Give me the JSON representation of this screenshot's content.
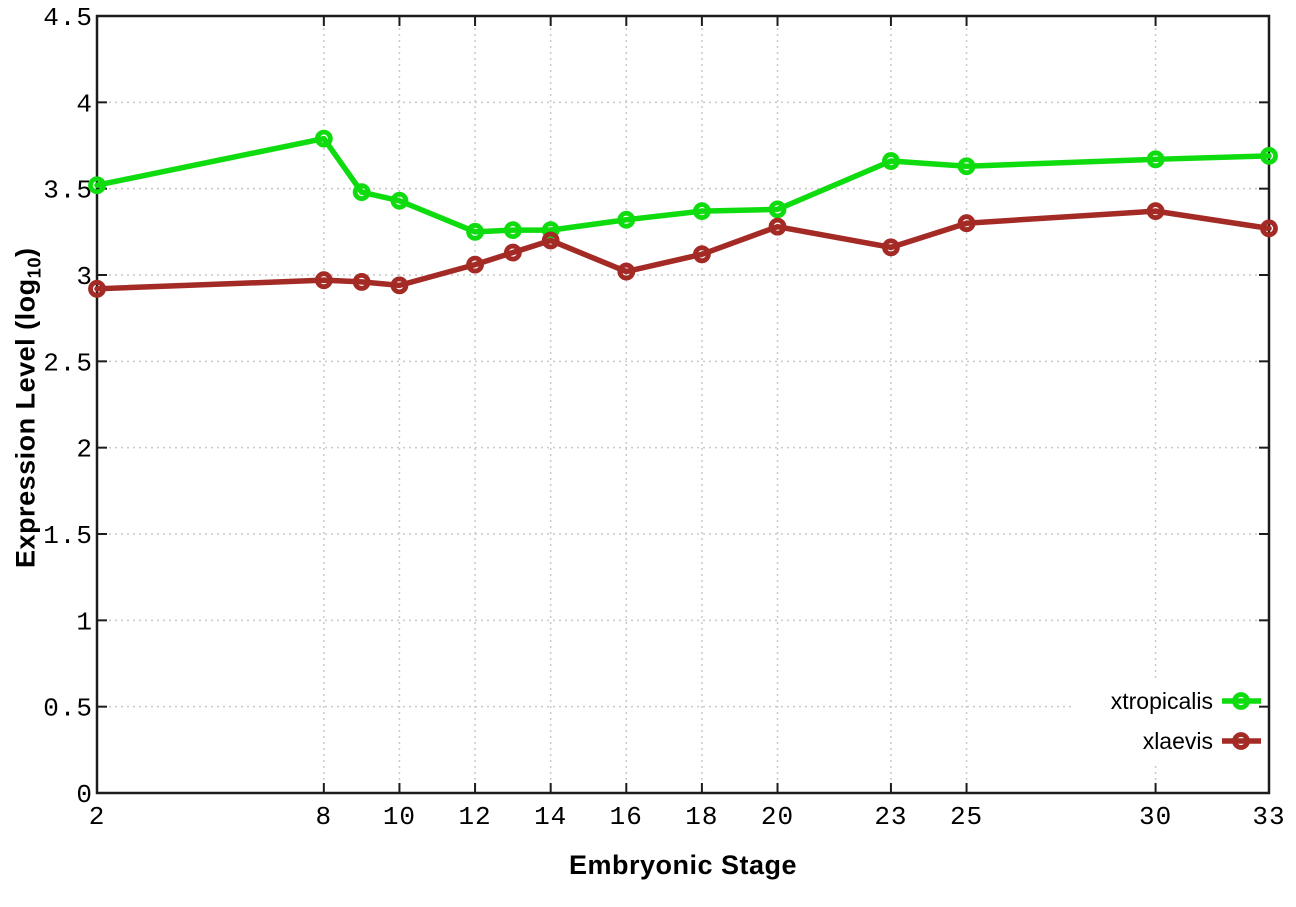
{
  "chart_data": {
    "type": "line",
    "title": "",
    "xlabel": "Embryonic Stage",
    "ylabel": "Expression Level (log10)",
    "ylabel_parts": {
      "prefix": "Expression Level (log",
      "sub": "10",
      "suffix": ")"
    },
    "x": [
      2,
      8,
      9,
      10,
      12,
      13,
      14,
      16,
      18,
      20,
      23,
      25,
      30,
      33
    ],
    "series": [
      {
        "name": "xtropicalis",
        "color": "#0fdc0f",
        "values": [
          3.52,
          3.79,
          3.48,
          3.43,
          3.25,
          3.26,
          3.26,
          3.32,
          3.37,
          3.38,
          3.66,
          3.63,
          3.67,
          3.69
        ]
      },
      {
        "name": "xlaevis",
        "color": "#a42a25",
        "values": [
          2.92,
          2.97,
          2.96,
          2.94,
          3.06,
          3.13,
          3.2,
          3.02,
          3.12,
          3.28,
          3.16,
          3.3,
          3.37,
          3.27
        ]
      }
    ],
    "xlim": [
      2,
      33
    ],
    "ylim": [
      0,
      4.5
    ],
    "xticks": [
      2,
      8,
      10,
      12,
      14,
      16,
      18,
      20,
      23,
      25,
      30,
      33
    ],
    "xtick_labels": [
      "2",
      "8",
      "10",
      "12",
      "14",
      "16",
      "18",
      "20",
      "23",
      "25",
      "30",
      "33"
    ],
    "yticks": [
      0,
      0.5,
      1,
      1.5,
      2,
      2.5,
      3,
      3.5,
      4,
      4.5
    ],
    "ytick_labels": [
      "0",
      "0.5",
      "1",
      "1.5",
      "2",
      "2.5",
      "3",
      "3.5",
      "4",
      "4.5"
    ],
    "grid": true,
    "grid_style": "dotted",
    "marker": "open-circle",
    "legend_position": "bottom-right",
    "colors": {
      "background": "#ffffff",
      "grid": "#c9c9c9",
      "axis": "#1c1c1c",
      "text": "#000000"
    }
  }
}
